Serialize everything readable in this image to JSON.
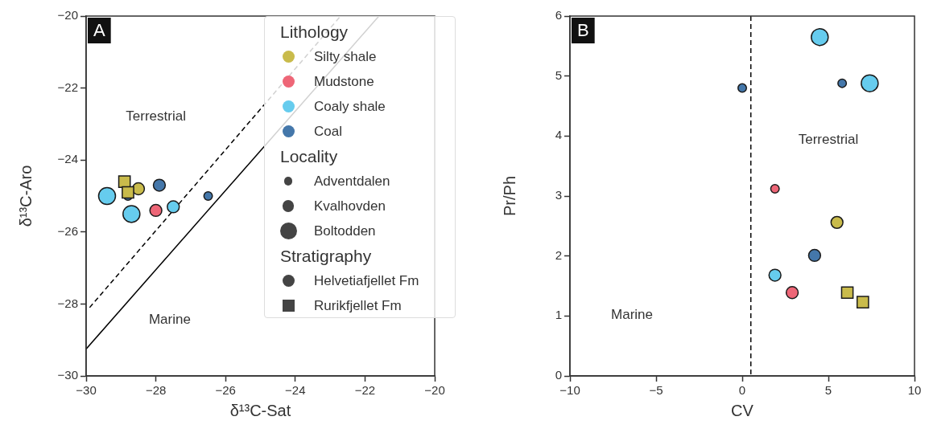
{
  "chart_data": [
    {
      "type": "scatter",
      "title": "A",
      "xlabel": "δ¹³C-Sat",
      "ylabel": "δ¹³C-Aro",
      "xlim": [
        -30,
        -20
      ],
      "ylim": [
        -30,
        -20
      ],
      "xticks": [
        -30,
        -28,
        -26,
        -24,
        -22,
        -20
      ],
      "yticks": [
        -30,
        -28,
        -26,
        -24,
        -22,
        -20
      ],
      "grid": false,
      "legend": "top right",
      "legend_title": "Lithology",
      "series": [
        {
          "type": "line",
          "color": "#000000",
          "x": [
            -30,
            -21.6
          ],
          "values": [
            -29.25,
            -20
          ],
          "marker": "none",
          "line_style": "solid"
        },
        {
          "type": "line",
          "color": "#000000",
          "x": [
            -29.9,
            -22.7
          ],
          "values": [
            -28.1,
            -20
          ],
          "marker": "none",
          "line_style": "dashed"
        },
        {
          "name": "Silty shale",
          "color": "#c9bb4b",
          "x": [
            -28.5
          ],
          "values": [
            -24.8
          ],
          "sizes": [
            0.5
          ],
          "marker": "circle"
        },
        {
          "name": "Mudstone",
          "color": "#ee6677",
          "x": [
            -28.0
          ],
          "values": [
            -25.4
          ],
          "sizes": [
            0.5
          ],
          "marker": "circle"
        },
        {
          "name": "Coaly shale",
          "color": "#66ccee",
          "x": [
            -29.4,
            -28.7,
            -27.5
          ],
          "values": [
            -25.0,
            -25.5,
            -25.3
          ],
          "sizes": [
            1,
            1,
            0.5
          ],
          "marker": "circle"
        },
        {
          "name": "Coal",
          "color": "#4477aa",
          "x": [
            -27.9,
            -26.5,
            -28.8
          ],
          "values": [
            -24.7,
            -25.0,
            -25.0
          ],
          "sizes": [
            0.5,
            0.25,
            0.25
          ],
          "marker": "circle"
        },
        {
          "color": "#c9bb4b",
          "x": [
            -28.9,
            -28.8
          ],
          "values": [
            -24.6,
            -24.9
          ],
          "sizes": [
            0.5,
            0.5
          ],
          "marker": "square"
        }
      ],
      "annotations": [
        "Terrestrial",
        "Marine",
        "Locality",
        "Adventdalen",
        "Kvalhovden",
        "Boltodden",
        "Stratigraphy",
        "Helvetiafjellet Fm",
        "Rurikfjellet Fm"
      ]
    },
    {
      "type": "scatter",
      "title": "B",
      "xlabel": "CV",
      "ylabel": "Pr/Ph",
      "xlim": [
        -10,
        10
      ],
      "ylim": [
        0,
        6
      ],
      "xticks": [
        -10,
        -5,
        0,
        5,
        10
      ],
      "yticks": [
        0,
        1,
        2,
        3,
        4,
        5,
        6
      ],
      "grid": false,
      "ref_lines": [
        {
          "axis": "x",
          "value": 0.5,
          "color": "#000000",
          "line_style": "dashed"
        }
      ],
      "series": [
        {
          "color": "#c9bb4b",
          "x": [
            5.5
          ],
          "values": [
            2.56
          ],
          "sizes": [
            0.5
          ],
          "marker": "circle"
        },
        {
          "color": "#ee6677",
          "x": [
            1.9,
            2.9
          ],
          "values": [
            3.12,
            1.39
          ],
          "sizes": [
            0.25,
            0.5
          ],
          "marker": "circle"
        },
        {
          "color": "#66ccee",
          "x": [
            4.5,
            7.4,
            1.9
          ],
          "values": [
            5.65,
            4.88,
            1.68
          ],
          "sizes": [
            1,
            1,
            0.5
          ],
          "marker": "circle"
        },
        {
          "color": "#4477aa",
          "x": [
            4.2,
            5.8,
            0.0
          ],
          "values": [
            2.01,
            4.88,
            4.8
          ],
          "sizes": [
            0.5,
            0.25,
            0.25
          ],
          "marker": "circle"
        },
        {
          "color": "#c9bb4b",
          "x": [
            6.1,
            7.0
          ],
          "values": [
            1.39,
            1.23
          ],
          "sizes": [
            0.5,
            0.5
          ],
          "marker": "square"
        }
      ],
      "annotations": [
        "Terrestrial",
        "Marine"
      ]
    }
  ]
}
